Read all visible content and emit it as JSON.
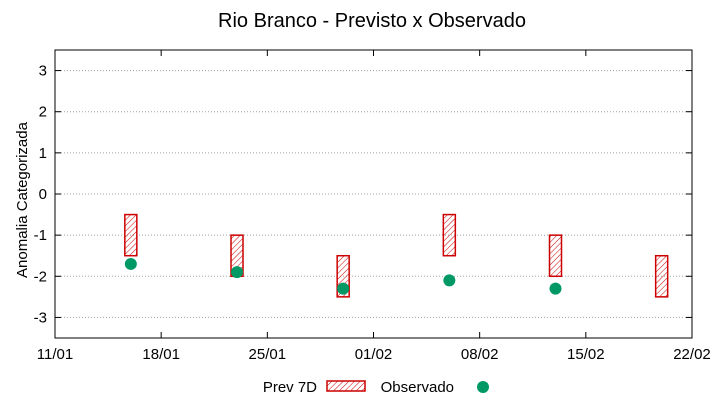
{
  "chart_data": {
    "type": "scatter",
    "title": "Rio Branco - Previsto x Observado",
    "xlabel": "",
    "ylabel": "Anomalia Categorizada",
    "x_ticks": [
      "11/01",
      "18/01",
      "25/01",
      "01/02",
      "08/02",
      "15/02",
      "22/02"
    ],
    "y_ticks": [
      "3",
      "2",
      "1",
      "0",
      "-1",
      "-2",
      "-3"
    ],
    "y_tick_values": [
      3,
      2,
      1,
      0,
      -1,
      -2,
      -3
    ],
    "xlim_days": [
      0,
      42
    ],
    "ylim": [
      -3.5,
      3.5
    ],
    "grid": true,
    "legend_position": "bottom",
    "series": [
      {
        "name": "Prev 7D",
        "kind": "range-box",
        "color": "#cc0000",
        "points": [
          {
            "x": "16/01",
            "x_day": 5,
            "low": -1.5,
            "high": -0.5
          },
          {
            "x": "23/01",
            "x_day": 12,
            "low": -2.0,
            "high": -1.0
          },
          {
            "x": "30/01",
            "x_day": 19,
            "low": -2.5,
            "high": -1.5
          },
          {
            "x": "06/02",
            "x_day": 26,
            "low": -1.5,
            "high": -0.5
          },
          {
            "x": "13/02",
            "x_day": 33,
            "low": -2.0,
            "high": -1.0
          },
          {
            "x": "20/02",
            "x_day": 40,
            "low": -2.5,
            "high": -1.5
          }
        ]
      },
      {
        "name": "Observado",
        "kind": "point",
        "color": "#009966",
        "points": [
          {
            "x": "16/01",
            "x_day": 5,
            "y": -1.7
          },
          {
            "x": "23/01",
            "x_day": 12,
            "y": -1.9
          },
          {
            "x": "30/01",
            "x_day": 19,
            "y": -2.3
          },
          {
            "x": "06/02",
            "x_day": 26,
            "y": -2.1
          },
          {
            "x": "13/02",
            "x_day": 33,
            "y": -2.3
          }
        ]
      }
    ]
  }
}
